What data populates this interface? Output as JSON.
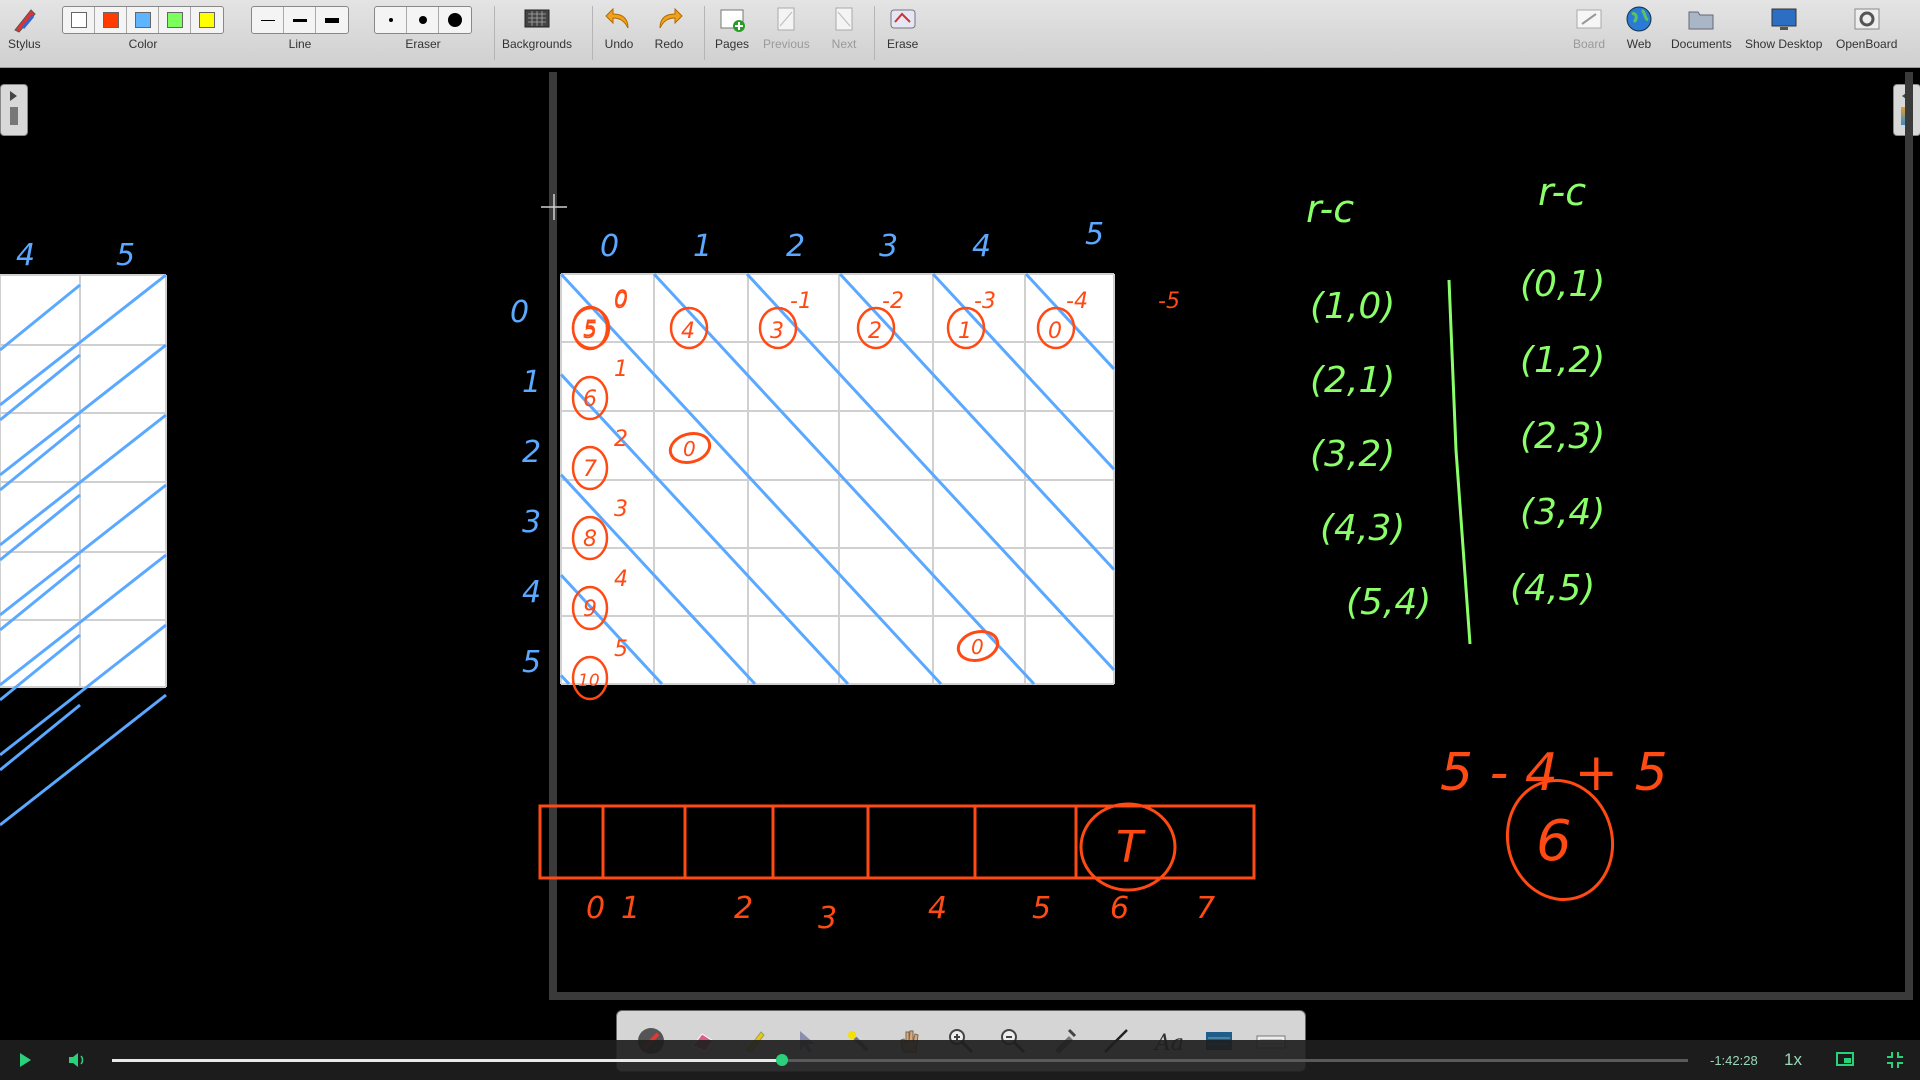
{
  "toolbar": {
    "stylus": "Stylus",
    "color": "Color",
    "line": "Line",
    "eraser": "Eraser",
    "backgrounds": "Backgrounds",
    "undo": "Undo",
    "redo": "Redo",
    "pages": "Pages",
    "previous": "Previous",
    "next": "Next",
    "erase": "Erase",
    "board": "Board",
    "web": "Web",
    "documents": "Documents",
    "show_desktop": "Show Desktop",
    "openboard": "OpenBoard"
  },
  "colors": {
    "palette": [
      "#ffffff",
      "#ff3b00",
      "#5fb4ff",
      "#7cff5c",
      "#ffff00"
    ],
    "ink_blue": "#5aa8ff",
    "ink_orange": "#ff4a14",
    "ink_green": "#8aff6a"
  },
  "dock_icons": [
    "pen-icon",
    "eraser-icon",
    "highlighter-icon",
    "pointer-icon",
    "laser-icon",
    "hand-icon",
    "zoom-in-icon",
    "zoom-out-icon",
    "capture-icon",
    "line-icon",
    "text-icon",
    "virtual-keyboard-icon",
    "keyboard-icon"
  ],
  "player": {
    "time": "-1:42:28",
    "speed": "1x",
    "progress": 0.425
  },
  "board": {
    "col_labels": [
      "0",
      "1",
      "2",
      "3",
      "4",
      "5"
    ],
    "row_labels": [
      "0",
      "1",
      "2",
      "3",
      "4",
      "5"
    ],
    "neg_labels": [
      "0",
      "-1",
      "-2",
      "-3",
      "-4",
      "-5"
    ],
    "top_circles": [
      "5",
      "4",
      "3",
      "2",
      "1",
      "0"
    ],
    "left_circles": [
      "5",
      "6",
      "7",
      "8",
      "9",
      "10"
    ],
    "right_labels": [
      "0",
      "1",
      "2",
      "3",
      "4",
      "5"
    ],
    "extra_zeros": [
      "0",
      "0"
    ],
    "left_grid_labels": [
      "4",
      "5"
    ],
    "rc_header": "r-c",
    "pairs_left": [
      "(1,0)",
      "(2,1)",
      "(3,2)",
      "(4,3)",
      "(5,4)"
    ],
    "pairs_right": [
      "(0,1)",
      "(1,2)",
      "(2,3)",
      "(3,4)",
      "(4,5)"
    ],
    "array_labels": [
      "0",
      "1",
      "2",
      "3",
      "4",
      "5",
      "6",
      "7"
    ],
    "array_mark": "T",
    "formula": "5 - 4 + 5",
    "result": "6"
  }
}
